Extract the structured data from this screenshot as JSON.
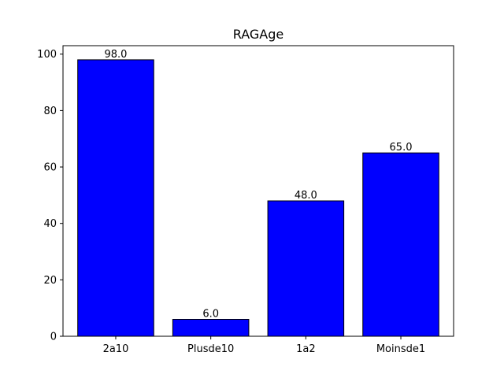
{
  "chart_data": {
    "type": "bar",
    "title": "RAGAge",
    "xlabel": "",
    "ylabel": "",
    "categories": [
      "2a10",
      "Plusde10",
      "1a2",
      "Moinsde1"
    ],
    "values": [
      98.0,
      6.0,
      48.0,
      65.0
    ],
    "value_labels": [
      "98.0",
      "6.0",
      "48.0",
      "65.0"
    ],
    "ylim": [
      0,
      103
    ],
    "yticks": [
      0,
      20,
      40,
      60,
      80,
      100
    ],
    "ytick_labels": [
      "0",
      "20",
      "40",
      "60",
      "80",
      "100"
    ],
    "grid": false,
    "bar_color": "#0000ff",
    "edge_color": "#000000"
  }
}
